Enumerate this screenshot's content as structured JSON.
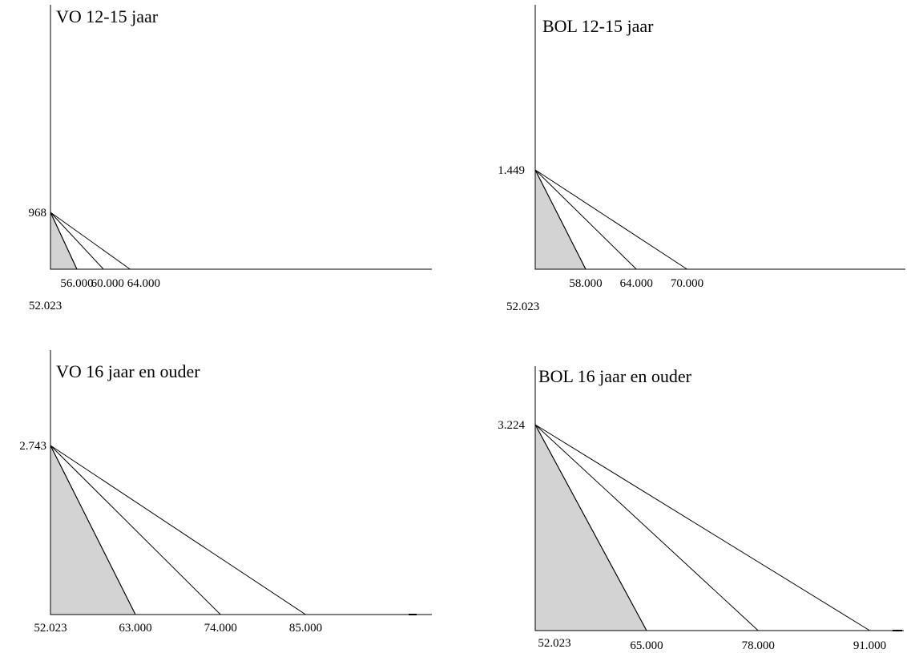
{
  "colors": {
    "shade": "#d3d3d3",
    "line": "#000000",
    "background": "#ffffff"
  },
  "chart_data": [
    {
      "type": "line",
      "title": "VO 12-15 jaar",
      "y_intercept_label": "968",
      "x_origin_label": "52.023",
      "x_end_labels": [
        "56.000",
        "60.000",
        "64.000"
      ],
      "series": [
        {
          "values": [
            [
              52023,
              968
            ],
            [
              56000,
              0
            ]
          ]
        },
        {
          "values": [
            [
              52023,
              968
            ],
            [
              60000,
              0
            ]
          ]
        },
        {
          "values": [
            [
              52023,
              968
            ],
            [
              64000,
              0
            ]
          ]
        }
      ],
      "shaded_series_index": 0
    },
    {
      "type": "line",
      "title": "BOL 12-15 jaar",
      "y_intercept_label": "1.449",
      "x_origin_label": "52.023",
      "x_end_labels": [
        "58.000",
        "64.000",
        "70.000"
      ],
      "series": [
        {
          "values": [
            [
              52023,
              1449
            ],
            [
              58000,
              0
            ]
          ]
        },
        {
          "values": [
            [
              52023,
              1449
            ],
            [
              64000,
              0
            ]
          ]
        },
        {
          "values": [
            [
              52023,
              1449
            ],
            [
              70000,
              0
            ]
          ]
        }
      ],
      "shaded_series_index": 0
    },
    {
      "type": "line",
      "title": "VO 16 jaar en ouder",
      "y_intercept_label": "2.743",
      "x_origin_label": "52.023",
      "x_end_labels": [
        "63.000",
        "74.000",
        "85.000"
      ],
      "series": [
        {
          "values": [
            [
              52023,
              2743
            ],
            [
              63000,
              0
            ]
          ]
        },
        {
          "values": [
            [
              52023,
              2743
            ],
            [
              74000,
              0
            ]
          ]
        },
        {
          "values": [
            [
              52023,
              2743
            ],
            [
              85000,
              0
            ]
          ]
        }
      ],
      "shaded_series_index": 0
    },
    {
      "type": "line",
      "title": "BOL 16 jaar en ouder",
      "y_intercept_label": "3.224",
      "x_origin_label": "52.023",
      "x_end_labels": [
        "65.000",
        "78.000",
        "91.000"
      ],
      "series": [
        {
          "values": [
            [
              52023,
              3224
            ],
            [
              65000,
              0
            ]
          ]
        },
        {
          "values": [
            [
              52023,
              3224
            ],
            [
              78000,
              0
            ]
          ]
        },
        {
          "values": [
            [
              52023,
              3224
            ],
            [
              91000,
              0
            ]
          ]
        }
      ],
      "shaded_series_index": 0
    }
  ]
}
